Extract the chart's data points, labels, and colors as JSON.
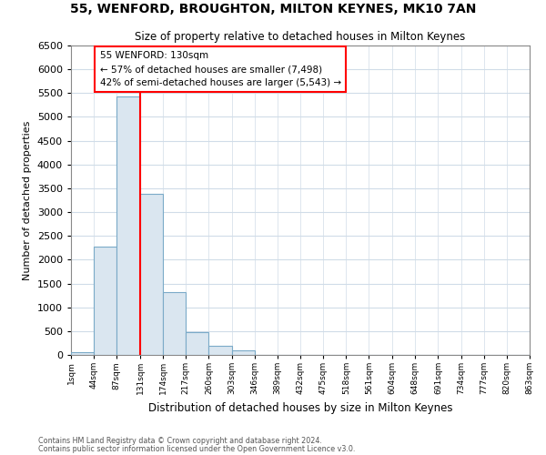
{
  "title": "55, WENFORD, BROUGHTON, MILTON KEYNES, MK10 7AN",
  "subtitle": "Size of property relative to detached houses in Milton Keynes",
  "xlabel": "Distribution of detached houses by size in Milton Keynes",
  "ylabel": "Number of detached properties",
  "bar_color": "#dae6f0",
  "bar_edge_color": "#7aaac8",
  "vline_x": 131,
  "vline_color": "red",
  "annotation_title": "55 WENFORD: 130sqm",
  "annotation_line1": "← 57% of detached houses are smaller (7,498)",
  "annotation_line2": "42% of semi-detached houses are larger (5,543) →",
  "annotation_box_color": "white",
  "annotation_box_edge": "red",
  "bins": [
    1,
    44,
    87,
    131,
    174,
    217,
    260,
    303,
    346,
    389,
    432,
    475,
    518,
    561,
    604,
    648,
    691,
    734,
    777,
    820,
    863
  ],
  "bin_labels": [
    "1sqm",
    "44sqm",
    "87sqm",
    "131sqm",
    "174sqm",
    "217sqm",
    "260sqm",
    "303sqm",
    "346sqm",
    "389sqm",
    "432sqm",
    "475sqm",
    "518sqm",
    "561sqm",
    "604sqm",
    "648sqm",
    "691sqm",
    "734sqm",
    "777sqm",
    "820sqm",
    "863sqm"
  ],
  "counts": [
    60,
    2280,
    5430,
    3380,
    1320,
    480,
    185,
    90,
    0,
    0,
    0,
    0,
    0,
    0,
    0,
    0,
    0,
    0,
    0,
    0
  ],
  "ylim": [
    0,
    6500
  ],
  "yticks": [
    0,
    500,
    1000,
    1500,
    2000,
    2500,
    3000,
    3500,
    4000,
    4500,
    5000,
    5500,
    6000,
    6500
  ],
  "footer_line1": "Contains HM Land Registry data © Crown copyright and database right 2024.",
  "footer_line2": "Contains public sector information licensed under the Open Government Licence v3.0.",
  "bg_color": "#ffffff"
}
